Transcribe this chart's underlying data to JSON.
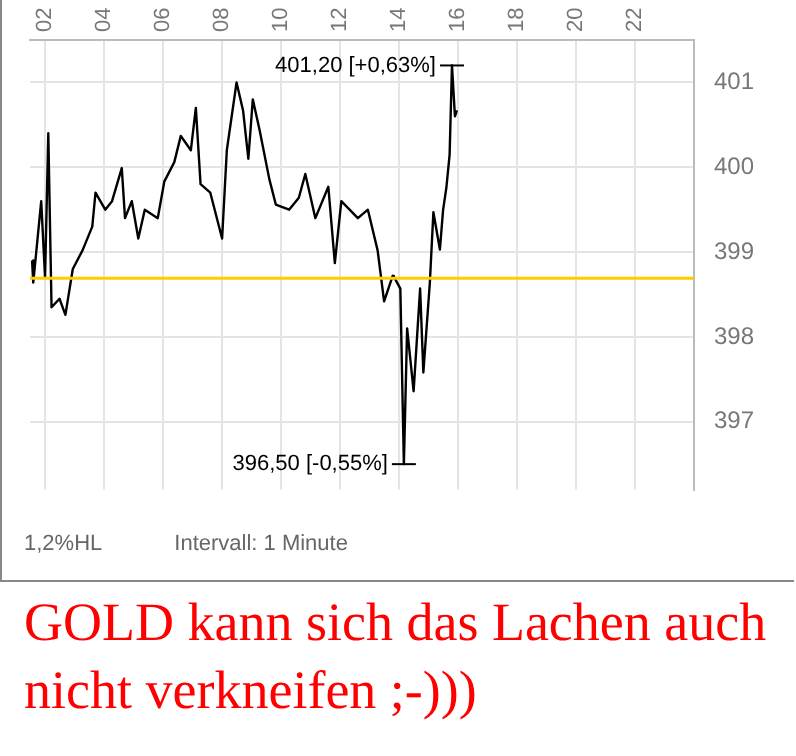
{
  "chart_data": {
    "type": "line",
    "x": [
      1.57,
      1.61,
      1.88,
      2.01,
      2.12,
      2.23,
      2.5,
      2.7,
      2.95,
      3.28,
      3.61,
      3.72,
      4.05,
      4.28,
      4.61,
      4.72,
      4.95,
      5.17,
      5.39,
      5.83,
      6.05,
      6.39,
      6.61,
      6.95,
      7.12,
      7.28,
      7.61,
      8.01,
      8.17,
      8.5,
      8.72,
      8.9,
      9.05,
      9.28,
      9.61,
      9.83,
      10.28,
      10.61,
      10.83,
      11.17,
      11.61,
      11.83,
      12.05,
      12.61,
      12.95,
      13.28,
      13.5,
      13.79,
      13.83,
      14.05,
      14.17,
      14.28,
      14.5,
      14.72,
      14.83,
      15.05,
      15.17,
      15.39,
      15.5,
      15.61,
      15.72,
      15.8,
      15.9,
      15.97
    ],
    "series": [
      {
        "color": "#000000",
        "values": [
          398.9,
          398.64,
          399.6,
          398.7,
          400.4,
          398.35,
          398.45,
          398.26,
          398.8,
          399.02,
          399.3,
          399.7,
          399.5,
          399.6,
          399.99,
          399.4,
          399.6,
          399.16,
          399.5,
          399.4,
          399.83,
          400.06,
          400.37,
          400.2,
          400.7,
          399.8,
          399.7,
          399.16,
          400.2,
          401.0,
          400.67,
          400.1,
          400.8,
          400.44,
          399.86,
          399.56,
          399.5,
          399.64,
          399.92,
          399.4,
          399.77,
          398.87,
          399.6,
          399.4,
          399.5,
          399.02,
          398.42,
          398.72,
          398.71,
          398.57,
          396.5,
          398.1,
          397.36,
          398.57,
          397.58,
          398.64,
          399.47,
          399.03,
          399.5,
          399.76,
          400.15,
          401.2,
          400.6,
          400.67
        ]
      }
    ],
    "xlim": [
      1.5,
      24
    ],
    "xticks": [
      {
        "value": 2,
        "label": "02"
      },
      {
        "value": 4,
        "label": "04"
      },
      {
        "value": 6,
        "label": "06"
      },
      {
        "value": 8,
        "label": "08"
      },
      {
        "value": 10,
        "label": "10"
      },
      {
        "value": 12,
        "label": "12"
      },
      {
        "value": 14,
        "label": "14"
      },
      {
        "value": 16,
        "label": "16"
      },
      {
        "value": 18,
        "label": "18"
      },
      {
        "value": 20,
        "label": "20"
      },
      {
        "value": 22,
        "label": "22"
      }
    ],
    "ylim": [
      396.2,
      401.5
    ],
    "yticks": [
      397,
      398,
      399,
      400,
      401
    ],
    "ref_lines": [
      {
        "axis": "y",
        "value": 398.69,
        "color": "#ffcc00"
      }
    ],
    "annotations": [
      {
        "text": "401,20 [+0,63%]",
        "x": 15.8,
        "y": 401.2
      },
      {
        "text": "396,50 [-0,55%]",
        "x": 14.17,
        "y": 396.5
      },
      "1,2%HL",
      "Intervall: 1 Minute",
      "GOLD kann sich das Lachen auch nicht verkneifen ;-)))"
    ],
    "grid": true,
    "legend": false,
    "marker": "none",
    "line_style": "solid"
  }
}
